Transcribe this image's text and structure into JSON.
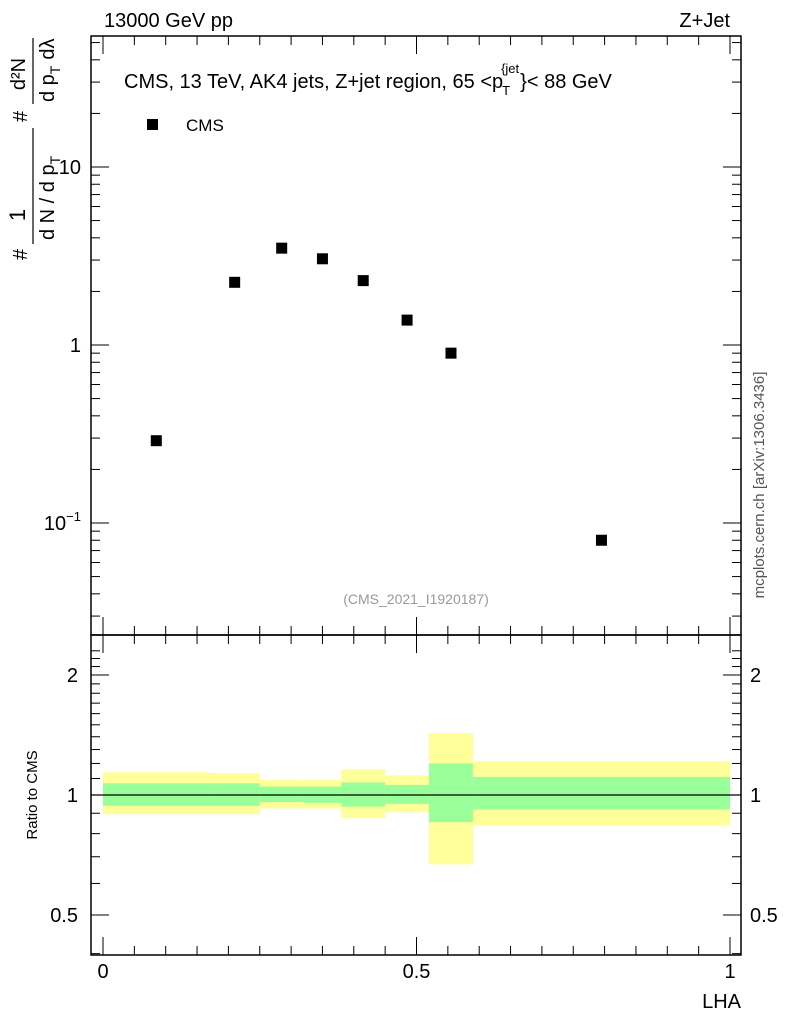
{
  "header": {
    "left_label": "13000 GeV pp",
    "right_label": "Z+Jet"
  },
  "side_label": "mcplots.cern.ch [arXiv:1306.3436]",
  "chart_data": [
    {
      "type": "scatter",
      "panel": "main",
      "title": "CMS, 13 TeV, AK4 jets, Z+jet region, 65 <p_T^{jet}< 88 GeV",
      "title_parts": {
        "prefix": "CMS, 13 TeV, AK4 jets, Z+jet region, 65 <p",
        "subscript": "T",
        "superscript": "{jet",
        "suffix": "}< 88 GeV"
      },
      "ylabel": "# 1/(dN / dp_T #) d²N/(dp_T dλ)",
      "ylabel_parts": {
        "hash1": "#",
        "frac1_num": "1",
        "frac1_den": "d N / d p",
        "frac1_den_sub": "T",
        "hash2": "#",
        "frac2_num": "d²N",
        "frac2_den": "d p",
        "frac2_den_sub": "T",
        "frac2_den_tail": "dλ"
      },
      "yscale": "log",
      "ylim": [
        0.025,
        50
      ],
      "xlim": [
        -0.02,
        1.02
      ],
      "yticks": [
        {
          "value": 0.1,
          "base": "10",
          "exp": "−1"
        },
        {
          "value": 1,
          "base": "1",
          "exp": ""
        },
        {
          "value": 10,
          "base": "10",
          "exp": ""
        }
      ],
      "legend": {
        "position": "top-left",
        "entries": [
          "CMS"
        ]
      },
      "watermark": "(CMS_2021_I1920187)",
      "series": [
        {
          "name": "CMS",
          "marker": "square",
          "x": [
            0.085,
            0.21,
            0.285,
            0.35,
            0.415,
            0.485,
            0.555,
            0.795
          ],
          "y": [
            0.29,
            2.25,
            3.5,
            3.05,
            2.3,
            1.38,
            0.9,
            0.08
          ]
        }
      ]
    },
    {
      "type": "area",
      "panel": "ratio",
      "ylabel": "Ratio to CMS",
      "xlabel": "LHA",
      "yscale": "log",
      "ylim": [
        0.4,
        2.4
      ],
      "xlim": [
        -0.02,
        1.02
      ],
      "yticks": [
        0.5,
        1,
        2
      ],
      "ytick_labels": [
        "0.5",
        "1",
        "2"
      ],
      "xticks": [
        0,
        0.5,
        1
      ],
      "xtick_labels": [
        "0",
        "0.5",
        "1"
      ],
      "reference_line": 1,
      "colors": {
        "inner_band": "#99ff99",
        "outer_band": "#ffff99"
      },
      "bins": [
        {
          "x0": 0.0,
          "x1": 0.17,
          "inner": [
            0.94,
            1.07
          ],
          "outer": [
            0.895,
            1.14
          ]
        },
        {
          "x0": 0.17,
          "x1": 0.25,
          "inner": [
            0.94,
            1.07
          ],
          "outer": [
            0.895,
            1.135
          ]
        },
        {
          "x0": 0.25,
          "x1": 0.32,
          "inner": [
            0.96,
            1.05
          ],
          "outer": [
            0.925,
            1.09
          ]
        },
        {
          "x0": 0.32,
          "x1": 0.38,
          "inner": [
            0.955,
            1.05
          ],
          "outer": [
            0.925,
            1.09
          ]
        },
        {
          "x0": 0.38,
          "x1": 0.45,
          "inner": [
            0.935,
            1.075
          ],
          "outer": [
            0.875,
            1.16
          ]
        },
        {
          "x0": 0.45,
          "x1": 0.52,
          "inner": [
            0.95,
            1.06
          ],
          "outer": [
            0.905,
            1.12
          ]
        },
        {
          "x0": 0.52,
          "x1": 0.59,
          "inner": [
            0.855,
            1.2
          ],
          "outer": [
            0.67,
            1.43
          ]
        },
        {
          "x0": 0.59,
          "x1": 1.0,
          "inner": [
            0.92,
            1.11
          ],
          "outer": [
            0.84,
            1.215
          ]
        }
      ]
    }
  ]
}
